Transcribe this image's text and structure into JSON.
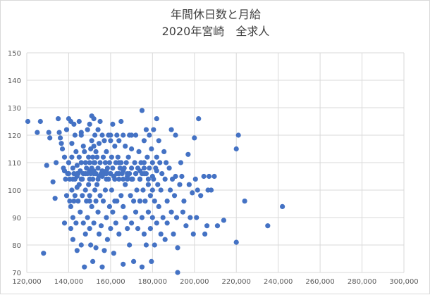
{
  "chart_data": {
    "type": "scatter",
    "title_line1": "年間休日数と月給",
    "title_line2": "2020年宮崎　全求人",
    "xlabel": "",
    "ylabel": "",
    "xlim": [
      120000,
      300000
    ],
    "ylim": [
      70,
      150
    ],
    "x_ticks": [
      "120,000",
      "140,000",
      "160,000",
      "180,000",
      "200,000",
      "220,000",
      "240,000",
      "260,000",
      "280,000",
      "300,000"
    ],
    "y_ticks": [
      "70",
      "80",
      "90",
      "100",
      "110",
      "120",
      "130",
      "140",
      "150"
    ],
    "grid": true,
    "legend": "none",
    "marker_color": "#4472c4",
    "grid_color": "#d9d9d9",
    "points": [
      [
        120500,
        125
      ],
      [
        125000,
        121
      ],
      [
        126500,
        125
      ],
      [
        128000,
        77
      ],
      [
        129500,
        109
      ],
      [
        130500,
        121
      ],
      [
        131000,
        119
      ],
      [
        132500,
        103
      ],
      [
        133500,
        97
      ],
      [
        134000,
        110
      ],
      [
        135000,
        126
      ],
      [
        135500,
        121
      ],
      [
        136000,
        119
      ],
      [
        136500,
        117
      ],
      [
        137000,
        115
      ],
      [
        137500,
        108
      ],
      [
        138000,
        112
      ],
      [
        138000,
        88
      ],
      [
        138500,
        104
      ],
      [
        139000,
        122
      ],
      [
        139000,
        98
      ],
      [
        139500,
        106
      ],
      [
        140000,
        126
      ],
      [
        140000,
        110
      ],
      [
        140500,
        104
      ],
      [
        140500,
        96
      ],
      [
        141000,
        125
      ],
      [
        141000,
        94
      ],
      [
        141000,
        86
      ],
      [
        141500,
        117
      ],
      [
        141500,
        112
      ],
      [
        141500,
        100
      ],
      [
        142000,
        108
      ],
      [
        142000,
        90
      ],
      [
        142000,
        82
      ],
      [
        142500,
        124
      ],
      [
        142500,
        106
      ],
      [
        142500,
        96
      ],
      [
        143000,
        120
      ],
      [
        143000,
        104
      ],
      [
        143000,
        98
      ],
      [
        143500,
        114
      ],
      [
        143500,
        88
      ],
      [
        144000,
        109
      ],
      [
        144000,
        101
      ],
      [
        144000,
        78
      ],
      [
        144500,
        106
      ],
      [
        144500,
        96
      ],
      [
        145000,
        125
      ],
      [
        145000,
        112
      ],
      [
        145000,
        102
      ],
      [
        145500,
        107
      ],
      [
        145500,
        92
      ],
      [
        146000,
        121
      ],
      [
        146000,
        110
      ],
      [
        146000,
        80
      ],
      [
        146500,
        104
      ],
      [
        146500,
        98
      ],
      [
        147000,
        116
      ],
      [
        147000,
        106
      ],
      [
        147000,
        88
      ],
      [
        147500,
        114
      ],
      [
        147500,
        72
      ],
      [
        148000,
        110
      ],
      [
        148000,
        100
      ],
      [
        148000,
        84
      ],
      [
        148500,
        108
      ],
      [
        148500,
        96
      ],
      [
        149000,
        122
      ],
      [
        149000,
        106
      ],
      [
        149000,
        90
      ],
      [
        149500,
        112
      ],
      [
        149500,
        102
      ],
      [
        150000,
        124
      ],
      [
        150000,
        110
      ],
      [
        150000,
        98
      ],
      [
        150000,
        86
      ],
      [
        150500,
        115
      ],
      [
        150500,
        106
      ],
      [
        150500,
        80
      ],
      [
        151000,
        127
      ],
      [
        151000,
        118
      ],
      [
        151000,
        108
      ],
      [
        151000,
        94
      ],
      [
        151500,
        112
      ],
      [
        151500,
        104
      ],
      [
        151500,
        74
      ],
      [
        152000,
        126
      ],
      [
        152000,
        116
      ],
      [
        152000,
        107
      ],
      [
        152000,
        88
      ],
      [
        152500,
        120
      ],
      [
        152500,
        110
      ],
      [
        152500,
        100
      ],
      [
        153000,
        114
      ],
      [
        153000,
        106
      ],
      [
        153000,
        96
      ],
      [
        153000,
        79
      ],
      [
        153500,
        112
      ],
      [
        153500,
        102
      ],
      [
        154000,
        122
      ],
      [
        154000,
        108
      ],
      [
        154000,
        92
      ],
      [
        154500,
        117
      ],
      [
        154500,
        105
      ],
      [
        154500,
        84
      ],
      [
        155000,
        125
      ],
      [
        155000,
        110
      ],
      [
        155000,
        98
      ],
      [
        155500,
        106
      ],
      [
        155500,
        87
      ],
      [
        156000,
        120
      ],
      [
        156000,
        107
      ],
      [
        156000,
        72
      ],
      [
        156500,
        112
      ],
      [
        156500,
        96
      ],
      [
        157000,
        118
      ],
      [
        157000,
        106
      ],
      [
        157000,
        78
      ],
      [
        157500,
        110
      ],
      [
        157500,
        100
      ],
      [
        158000,
        114
      ],
      [
        158000,
        106
      ],
      [
        158000,
        90
      ],
      [
        158500,
        108
      ],
      [
        158500,
        82
      ],
      [
        159000,
        120
      ],
      [
        159000,
        104
      ],
      [
        159500,
        110
      ],
      [
        159500,
        94
      ],
      [
        160000,
        118
      ],
      [
        160000,
        106
      ],
      [
        160000,
        86
      ],
      [
        160500,
        112
      ],
      [
        160500,
        100
      ],
      [
        161000,
        124
      ],
      [
        161000,
        108
      ],
      [
        161000,
        92
      ],
      [
        161500,
        105
      ],
      [
        161500,
        77
      ],
      [
        162000,
        116
      ],
      [
        162000,
        104
      ],
      [
        162500,
        110
      ],
      [
        162500,
        88
      ],
      [
        163000,
        120
      ],
      [
        163000,
        106
      ],
      [
        163000,
        96
      ],
      [
        163500,
        112
      ],
      [
        164000,
        118
      ],
      [
        164000,
        104
      ],
      [
        164000,
        84
      ],
      [
        164500,
        108
      ],
      [
        165000,
        125
      ],
      [
        165000,
        110
      ],
      [
        165000,
        98
      ],
      [
        165500,
        106
      ],
      [
        166000,
        120
      ],
      [
        166000,
        94
      ],
      [
        166000,
        73
      ],
      [
        166500,
        108
      ],
      [
        167000,
        116
      ],
      [
        167000,
        102
      ],
      [
        167000,
        90
      ],
      [
        167500,
        110
      ],
      [
        168000,
        104
      ],
      [
        168000,
        86
      ],
      [
        168500,
        112
      ],
      [
        169000,
        120
      ],
      [
        169000,
        106
      ],
      [
        169000,
        80
      ],
      [
        169500,
        98
      ],
      [
        170000,
        115
      ],
      [
        170000,
        108
      ],
      [
        170000,
        88
      ],
      [
        170500,
        104
      ],
      [
        171000,
        96
      ],
      [
        171000,
        74
      ],
      [
        171500,
        110
      ],
      [
        172000,
        120
      ],
      [
        172000,
        106
      ],
      [
        172000,
        92
      ],
      [
        172500,
        100
      ],
      [
        173000,
        108
      ],
      [
        173000,
        86
      ],
      [
        173500,
        114
      ],
      [
        174000,
        104
      ],
      [
        174000,
        96
      ],
      [
        174500,
        110
      ],
      [
        175000,
        129
      ],
      [
        175000,
        106
      ],
      [
        175000,
        90
      ],
      [
        175000,
        72
      ],
      [
        175500,
        100
      ],
      [
        176000,
        118
      ],
      [
        176000,
        108
      ],
      [
        176000,
        84
      ],
      [
        176500,
        96
      ],
      [
        177000,
        122
      ],
      [
        177000,
        106
      ],
      [
        177000,
        80
      ],
      [
        177500,
        112
      ],
      [
        178000,
        102
      ],
      [
        178000,
        92
      ],
      [
        178500,
        120
      ],
      [
        178500,
        108
      ],
      [
        179000,
        98
      ],
      [
        179000,
        86
      ],
      [
        179500,
        115
      ],
      [
        179500,
        74
      ],
      [
        180000,
        110
      ],
      [
        180000,
        100
      ],
      [
        180000,
        90
      ],
      [
        180500,
        122
      ],
      [
        180500,
        104
      ],
      [
        181000,
        96
      ],
      [
        181000,
        80
      ],
      [
        181500,
        108
      ],
      [
        182000,
        126
      ],
      [
        182000,
        112
      ],
      [
        182000,
        88
      ],
      [
        182500,
        102
      ],
      [
        183000,
        118
      ],
      [
        183000,
        94
      ],
      [
        183500,
        110
      ],
      [
        184000,
        100
      ],
      [
        184000,
        84
      ],
      [
        184500,
        106
      ],
      [
        185000,
        90
      ],
      [
        185500,
        114
      ],
      [
        186000,
        104
      ],
      [
        186000,
        82
      ],
      [
        186500,
        110
      ],
      [
        187000,
        96
      ],
      [
        187000,
        88
      ],
      [
        188000,
        108
      ],
      [
        188500,
        100
      ],
      [
        189000,
        122
      ],
      [
        189000,
        92
      ],
      [
        189500,
        104
      ],
      [
        190000,
        84
      ],
      [
        190500,
        98
      ],
      [
        191000,
        120
      ],
      [
        191000,
        105
      ],
      [
        191500,
        90
      ],
      [
        192000,
        70
      ],
      [
        192000,
        79
      ],
      [
        193000,
        102
      ],
      [
        193500,
        110
      ],
      [
        194000,
        105
      ],
      [
        194500,
        92
      ],
      [
        195000,
        96
      ],
      [
        196000,
        87
      ],
      [
        197000,
        113
      ],
      [
        197500,
        102
      ],
      [
        198000,
        90
      ],
      [
        199000,
        99
      ],
      [
        199500,
        84
      ],
      [
        200000,
        119
      ],
      [
        200500,
        104
      ],
      [
        201000,
        90
      ],
      [
        201500,
        100
      ],
      [
        202000,
        126
      ],
      [
        203000,
        98
      ],
      [
        204500,
        105
      ],
      [
        205000,
        84
      ],
      [
        206000,
        87
      ],
      [
        206500,
        100
      ],
      [
        207000,
        105
      ],
      [
        208000,
        100
      ],
      [
        209500,
        105
      ],
      [
        211000,
        87
      ],
      [
        214000,
        89
      ],
      [
        220000,
        115
      ],
      [
        220000,
        81
      ],
      [
        221000,
        120
      ],
      [
        224000,
        96
      ],
      [
        235000,
        87
      ],
      [
        242000,
        94
      ],
      [
        140000,
        106
      ],
      [
        144000,
        106
      ],
      [
        148000,
        106
      ],
      [
        152000,
        106
      ],
      [
        156000,
        106
      ],
      [
        160000,
        106
      ],
      [
        164000,
        106
      ],
      [
        168000,
        106
      ],
      [
        172000,
        106
      ],
      [
        176000,
        106
      ],
      [
        142000,
        104
      ],
      [
        146000,
        104
      ],
      [
        150000,
        104
      ],
      [
        154000,
        104
      ],
      [
        158000,
        104
      ],
      [
        162000,
        104
      ],
      [
        166000,
        104
      ],
      [
        170000,
        104
      ],
      [
        174000,
        104
      ],
      [
        178000,
        104
      ],
      [
        138000,
        107
      ],
      [
        150000,
        107
      ],
      [
        158000,
        107
      ],
      [
        166000,
        107
      ],
      [
        174000,
        107
      ],
      [
        182000,
        107
      ],
      [
        144000,
        105
      ],
      [
        156000,
        105
      ],
      [
        168000,
        105
      ],
      [
        180000,
        105
      ],
      [
        146000,
        120
      ],
      [
        160000,
        120
      ],
      [
        170000,
        120
      ],
      [
        150000,
        96
      ],
      [
        162000,
        96
      ],
      [
        174000,
        96
      ],
      [
        140000,
        110
      ],
      [
        152000,
        110
      ],
      [
        164000,
        110
      ],
      [
        176000,
        110
      ]
    ]
  }
}
